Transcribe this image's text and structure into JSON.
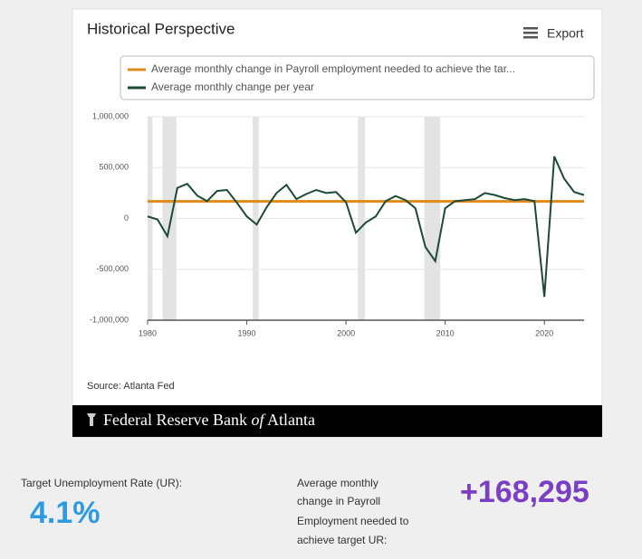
{
  "chart_data": {
    "type": "line",
    "title": "Historical Perspective",
    "x": [
      1980,
      1981,
      1982,
      1983,
      1984,
      1985,
      1986,
      1987,
      1988,
      1989,
      1990,
      1991,
      1992,
      1993,
      1994,
      1995,
      1996,
      1997,
      1998,
      1999,
      2000,
      2001,
      2002,
      2003,
      2004,
      2005,
      2006,
      2007,
      2008,
      2009,
      2010,
      2011,
      2012,
      2013,
      2014,
      2015,
      2016,
      2017,
      2018,
      2019,
      2020,
      2021,
      2022,
      2023,
      2024
    ],
    "series": [
      {
        "name": "Average monthly change in Payroll employment needed to achieve the tar...",
        "color": "#e08a1e",
        "values": [
          168295,
          168295,
          168295,
          168295,
          168295,
          168295,
          168295,
          168295,
          168295,
          168295,
          168295,
          168295,
          168295,
          168295,
          168295,
          168295,
          168295,
          168295,
          168295,
          168295,
          168295,
          168295,
          168295,
          168295,
          168295,
          168295,
          168295,
          168295,
          168295,
          168295,
          168295,
          168295,
          168295,
          168295,
          168295,
          168295,
          168295,
          168295,
          168295,
          168295,
          168295,
          168295,
          168295,
          168295,
          168295
        ]
      },
      {
        "name": "Average monthly change per year",
        "color": "#1d4a34",
        "values": [
          20000,
          -10000,
          -175000,
          300000,
          340000,
          225000,
          170000,
          270000,
          280000,
          155000,
          20000,
          -60000,
          110000,
          250000,
          330000,
          190000,
          240000,
          280000,
          250000,
          260000,
          160000,
          -140000,
          -40000,
          20000,
          170000,
          220000,
          180000,
          100000,
          -280000,
          -420000,
          100000,
          170000,
          180000,
          190000,
          250000,
          230000,
          200000,
          180000,
          190000,
          170000,
          -770000,
          610000,
          390000,
          260000,
          230000
        ]
      }
    ],
    "recessions": [
      [
        1980.0,
        1980.5
      ],
      [
        1981.5,
        1982.9
      ],
      [
        1990.6,
        1991.2
      ],
      [
        2001.2,
        2001.9
      ],
      [
        2007.9,
        2009.5
      ]
    ],
    "xlim": [
      1980,
      2024
    ],
    "xticks": [
      1980,
      1990,
      2000,
      2010,
      2020
    ],
    "ylim": [
      -1000000,
      1000000
    ],
    "yticks": [
      {
        "value": -1000000,
        "label": "-1,000,000"
      },
      {
        "value": -500000,
        "label": "-500,000"
      },
      0,
      {
        "value": 500000,
        "label": "500,000"
      },
      {
        "value": 1000000,
        "label": "1,000,000"
      }
    ],
    "grid": true,
    "legend": "top"
  },
  "export": "Export",
  "source": "Source: Atlanta Fed",
  "footer": {
    "before": "Federal Reserve Bank",
    "italic": "of",
    "after": "Atlanta"
  },
  "summary": {
    "target_label": "Target Unemployment Rate (UR):",
    "target_value": "4.1%",
    "change_label": [
      "Average monthly",
      "change in Payroll",
      "Employment needed to",
      "achieve target UR:"
    ],
    "change_value": "+168,295"
  }
}
